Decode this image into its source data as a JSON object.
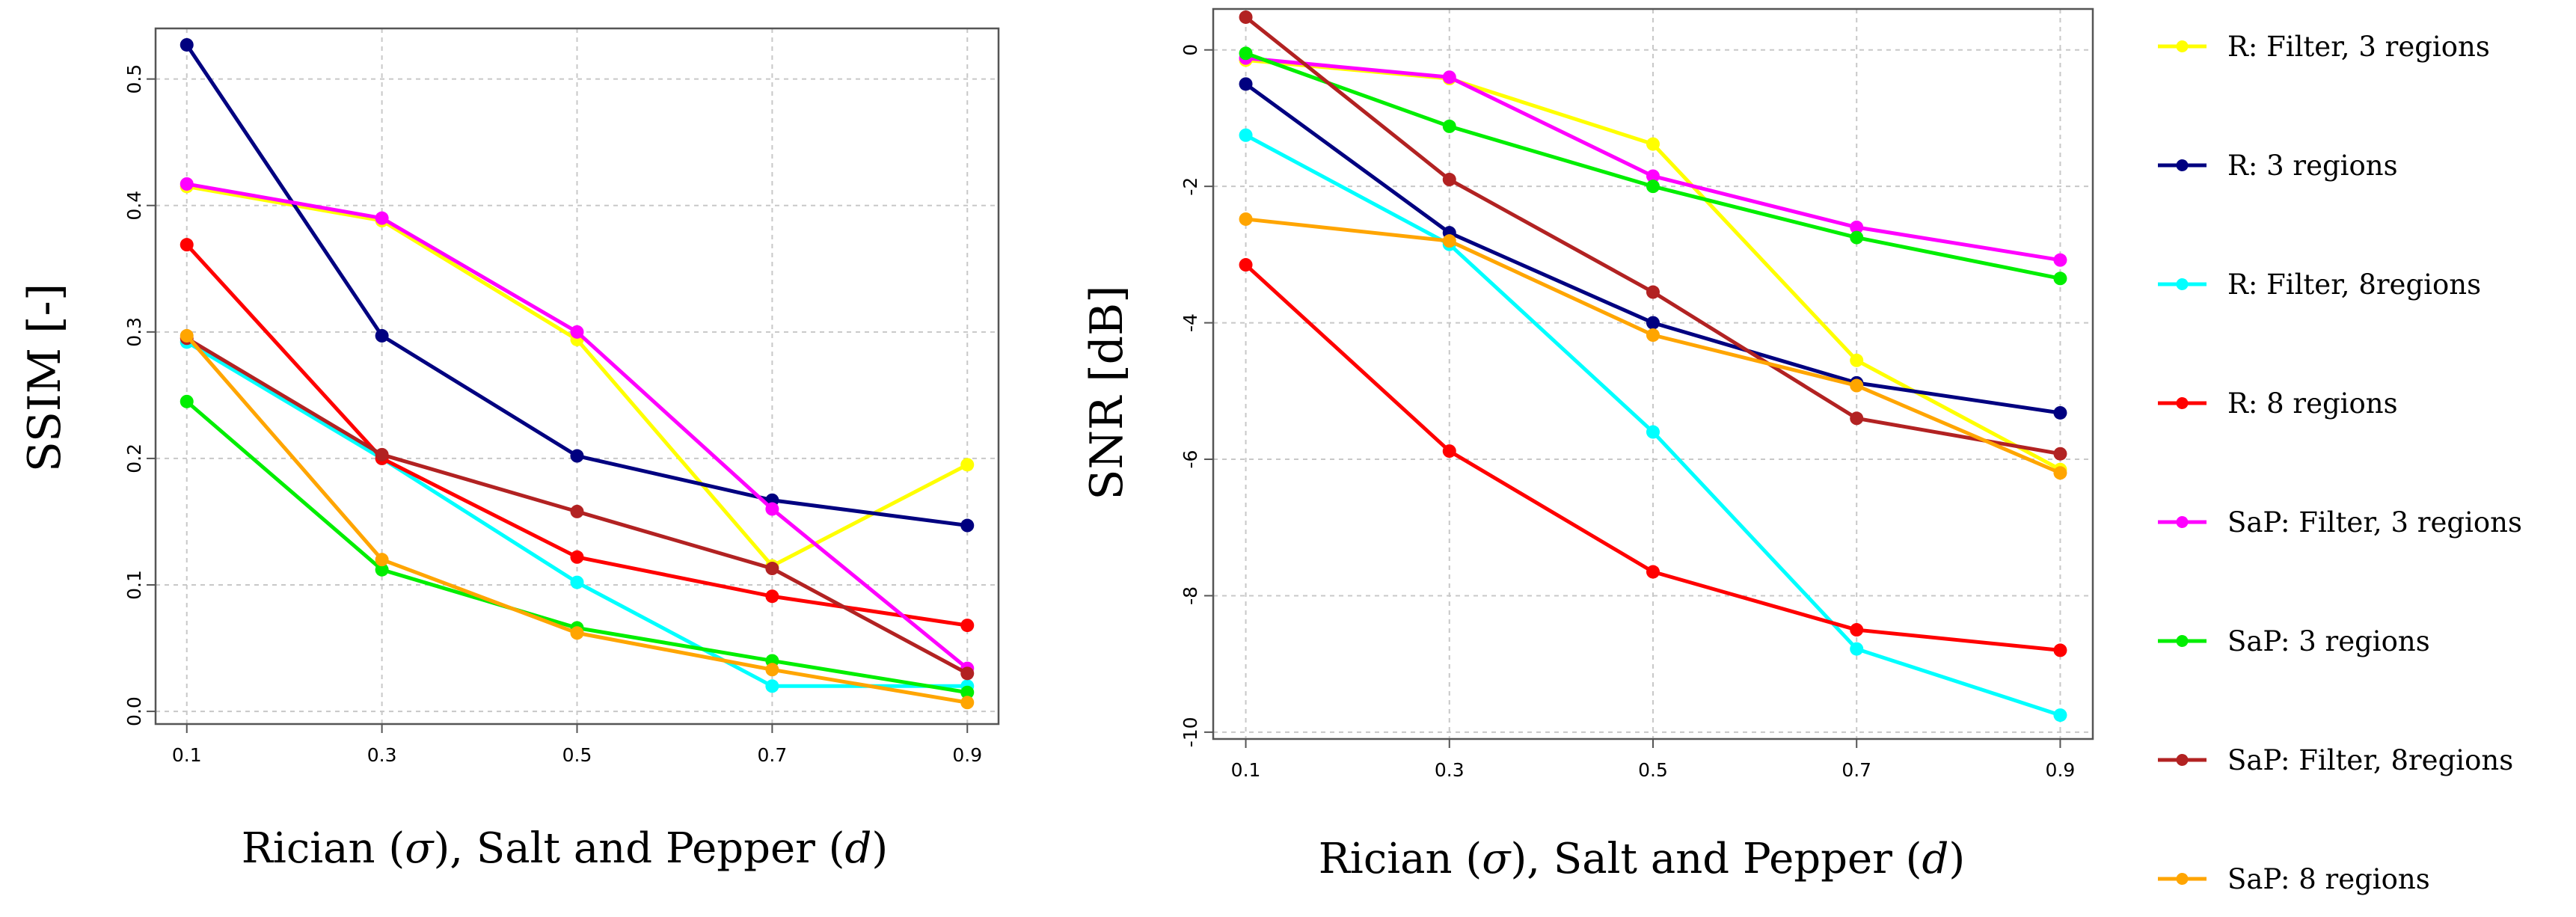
{
  "chart_data": [
    {
      "type": "line",
      "ylabel": "SSIM [-]",
      "xlabel": {
        "prefix": "Rician (",
        "sym1": "σ",
        "mid": "), Salt and Pepper (",
        "sym2": "d",
        "suffix": ")"
      },
      "x": [
        0.1,
        0.3,
        0.5,
        0.7,
        0.9
      ],
      "x_tick_labels": [
        "0.1",
        "0.3",
        "0.5",
        "0.7",
        "0.9"
      ],
      "y_ticks": [
        0.0,
        0.1,
        0.2,
        0.3,
        0.4,
        0.5
      ],
      "y_tick_labels": [
        "0.0",
        "0.1",
        "0.2",
        "0.3",
        "0.4",
        "0.5"
      ],
      "ylim": [
        -0.01,
        0.54
      ],
      "grid": true,
      "series": [
        {
          "name": "R: Filter, 3 regions",
          "color": "#ffff00",
          "values": [
            0.415,
            0.388,
            0.294,
            0.115,
            0.195
          ]
        },
        {
          "name": "R: 3 regions",
          "color": "#000080",
          "values": [
            0.527,
            0.297,
            0.202,
            0.167,
            0.147
          ]
        },
        {
          "name": "R: Filter, 8regions",
          "color": "#00ffff",
          "values": [
            0.292,
            0.2,
            0.102,
            0.02,
            0.02
          ]
        },
        {
          "name": "R: 8 regions",
          "color": "#ff0000",
          "values": [
            0.369,
            0.2,
            0.122,
            0.091,
            0.068
          ]
        },
        {
          "name": "SaP: Filter, 3 regions",
          "color": "#ff00ff",
          "values": [
            0.417,
            0.39,
            0.3,
            0.16,
            0.034
          ]
        },
        {
          "name": "SaP: 3 regions",
          "color": "#00ee00",
          "values": [
            0.245,
            0.112,
            0.066,
            0.04,
            0.015
          ]
        },
        {
          "name": "SaP: Filter, 8regions",
          "color": "#b22222",
          "values": [
            0.295,
            0.203,
            0.158,
            0.113,
            0.03
          ]
        },
        {
          "name": "SaP: 8 regions",
          "color": "#ffa500",
          "values": [
            0.297,
            0.12,
            0.062,
            0.033,
            0.007
          ]
        }
      ]
    },
    {
      "type": "line",
      "ylabel": "SNR [dB]",
      "xlabel": {
        "prefix": "Rician (",
        "sym1": "σ",
        "mid": "), Salt and Pepper (",
        "sym2": "d",
        "suffix": ")"
      },
      "x": [
        0.1,
        0.3,
        0.5,
        0.7,
        0.9
      ],
      "x_tick_labels": [
        "0.1",
        "0.3",
        "0.5",
        "0.7",
        "0.9"
      ],
      "y_ticks": [
        -10,
        -8,
        -6,
        -4,
        -2,
        0
      ],
      "y_tick_labels": [
        "-10",
        "-8",
        "-6",
        "-4",
        "-2",
        "0"
      ],
      "ylim": [
        -10.1,
        0.6
      ],
      "grid": true,
      "series": [
        {
          "name": "R: Filter, 3 regions",
          "color": "#ffff00",
          "values": [
            -0.15,
            -0.42,
            -1.38,
            -4.55,
            -6.15
          ]
        },
        {
          "name": "R: 3 regions",
          "color": "#000080",
          "values": [
            -0.5,
            -2.68,
            -4.0,
            -4.88,
            -5.32
          ]
        },
        {
          "name": "R: Filter, 8regions",
          "color": "#00ffff",
          "values": [
            -1.25,
            -2.85,
            -5.6,
            -8.78,
            -9.75
          ]
        },
        {
          "name": "R: 8 regions",
          "color": "#ff0000",
          "values": [
            -3.15,
            -5.88,
            -7.65,
            -8.5,
            -8.8
          ]
        },
        {
          "name": "SaP: Filter, 3 regions",
          "color": "#ff00ff",
          "values": [
            -0.12,
            -0.4,
            -1.85,
            -2.6,
            -3.08
          ]
        },
        {
          "name": "SaP: 3 regions",
          "color": "#00ee00",
          "values": [
            -0.05,
            -1.12,
            -2.0,
            -2.75,
            -3.35
          ]
        },
        {
          "name": "SaP: Filter, 8regions",
          "color": "#b22222",
          "values": [
            0.48,
            -1.9,
            -3.55,
            -5.4,
            -5.92
          ]
        },
        {
          "name": "SaP: 8 regions",
          "color": "#ffa500",
          "values": [
            -2.48,
            -2.8,
            -4.18,
            -4.92,
            -6.2
          ]
        }
      ]
    }
  ]
}
